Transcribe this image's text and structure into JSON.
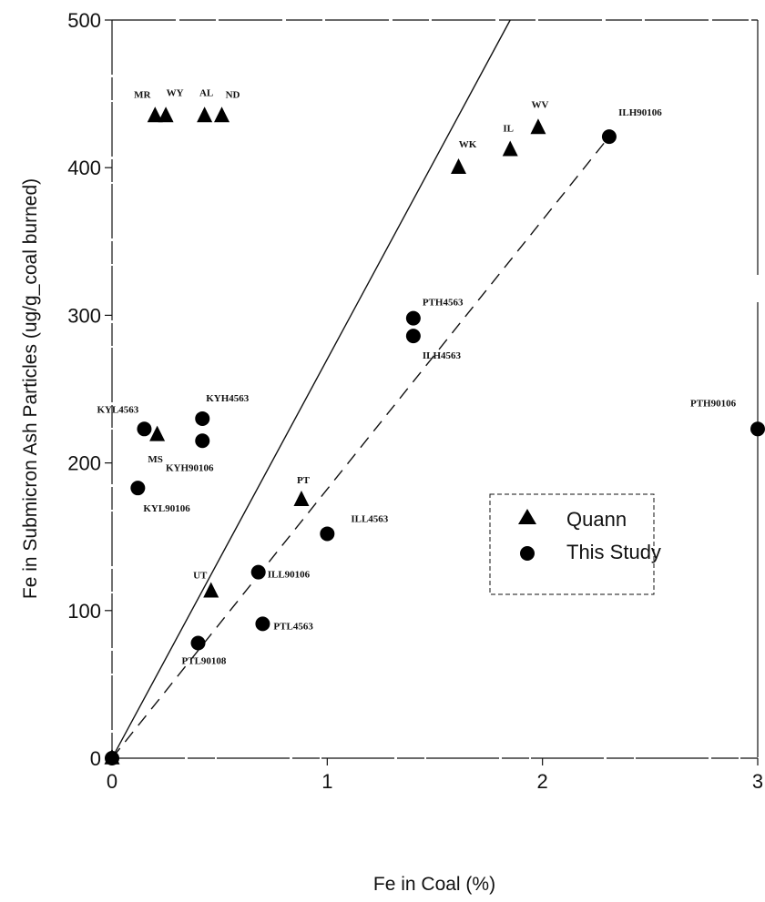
{
  "chart_data": {
    "type": "scatter",
    "title": "",
    "xlabel": "Fe in Coal (%)",
    "ylabel": "Fe in Submicron Ash Particles (ug/g_coal burned)",
    "xlim": [
      0,
      3
    ],
    "ylim": [
      0,
      500
    ],
    "xticks": [
      "0",
      "1",
      "2",
      "3"
    ],
    "yticks": [
      "0",
      "100",
      "200",
      "300",
      "400",
      "500"
    ],
    "legend_position": "center-right",
    "grid": false,
    "series": [
      {
        "name": "Quann",
        "marker": "triangle",
        "color": "#000000",
        "points": [
          {
            "x": 0.2,
            "y": 435,
            "label": "MR"
          },
          {
            "x": 0.25,
            "y": 435,
            "label": "WY"
          },
          {
            "x": 0.43,
            "y": 435,
            "label": "AL"
          },
          {
            "x": 0.51,
            "y": 435,
            "label": "ND"
          },
          {
            "x": 1.61,
            "y": 400,
            "label": "WK"
          },
          {
            "x": 1.85,
            "y": 412,
            "label": "IL"
          },
          {
            "x": 1.98,
            "y": 427,
            "label": "WV"
          },
          {
            "x": 0.21,
            "y": 219,
            "label": "MS"
          },
          {
            "x": 0.88,
            "y": 175,
            "label": "PT"
          },
          {
            "x": 0.46,
            "y": 113,
            "label": "UT"
          },
          {
            "x": 0,
            "y": 0,
            "label": ""
          }
        ]
      },
      {
        "name": "This Study",
        "marker": "circle",
        "color": "#000000",
        "points": [
          {
            "x": 2.31,
            "y": 421,
            "label": "ILH90106"
          },
          {
            "x": 1.4,
            "y": 298,
            "label": "PTH4563"
          },
          {
            "x": 1.4,
            "y": 286,
            "label": "ILH4563"
          },
          {
            "x": 0.42,
            "y": 230,
            "label": "KYH4563"
          },
          {
            "x": 0.15,
            "y": 223,
            "label": "KYL4563"
          },
          {
            "x": 0.42,
            "y": 215,
            "label": "KYH90106"
          },
          {
            "x": 0.12,
            "y": 183,
            "label": "KYL90106"
          },
          {
            "x": 3.0,
            "y": 223,
            "label": "PTH90106"
          },
          {
            "x": 1.0,
            "y": 152,
            "label": "ILL4563"
          },
          {
            "x": 0.68,
            "y": 126,
            "label": "ILL90106"
          },
          {
            "x": 0.7,
            "y": 91,
            "label": "PTL4563"
          },
          {
            "x": 0.4,
            "y": 78,
            "label": "PTL90108"
          },
          {
            "x": 0,
            "y": 0,
            "label": ""
          }
        ]
      }
    ],
    "lines": [
      {
        "style": "solid",
        "from": [
          0,
          0
        ],
        "to": [
          1.85,
          500
        ]
      },
      {
        "style": "dashed",
        "from": [
          0,
          0
        ],
        "to": [
          2.31,
          421
        ]
      }
    ],
    "legend": {
      "items": [
        {
          "label": "Quann",
          "marker": "triangle"
        },
        {
          "label": "This Study",
          "marker": "circle"
        }
      ]
    }
  }
}
